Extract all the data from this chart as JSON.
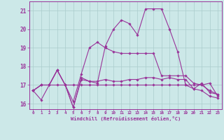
{
  "xlabel": "Windchill (Refroidissement éolien,°C)",
  "xlim": [
    -0.5,
    23.5
  ],
  "ylim": [
    15.7,
    21.5
  ],
  "yticks": [
    16,
    17,
    18,
    19,
    20,
    21
  ],
  "xticks": [
    0,
    1,
    2,
    3,
    4,
    5,
    6,
    7,
    8,
    9,
    10,
    11,
    12,
    13,
    14,
    15,
    16,
    17,
    18,
    19,
    20,
    21,
    22,
    23
  ],
  "bg_color": "#cce8e8",
  "line_color": "#993399",
  "grid_color": "#aacccc",
  "series": [
    [
      16.7,
      16.2,
      17.0,
      17.8,
      17.0,
      15.8,
      17.3,
      17.2,
      17.1,
      19.1,
      20.0,
      20.5,
      20.3,
      19.7,
      21.1,
      21.1,
      21.1,
      20.0,
      18.8,
      17.0,
      17.0,
      17.0,
      17.1,
      16.4
    ],
    [
      16.7,
      17.0,
      17.0,
      17.0,
      17.0,
      17.0,
      17.0,
      17.0,
      17.0,
      17.0,
      17.0,
      17.0,
      17.0,
      17.0,
      17.0,
      17.0,
      17.0,
      17.0,
      17.0,
      17.0,
      16.8,
      16.7,
      16.4,
      16.3
    ],
    [
      16.7,
      17.0,
      17.0,
      17.8,
      17.0,
      16.1,
      17.6,
      19.0,
      19.3,
      19.0,
      18.8,
      18.7,
      18.7,
      18.7,
      18.7,
      18.7,
      17.5,
      17.5,
      17.5,
      17.5,
      17.1,
      17.0,
      16.7,
      16.5
    ],
    [
      16.7,
      17.0,
      17.0,
      17.8,
      17.0,
      15.8,
      17.4,
      17.2,
      17.2,
      17.3,
      17.2,
      17.2,
      17.3,
      17.3,
      17.4,
      17.4,
      17.3,
      17.4,
      17.3,
      17.3,
      16.8,
      17.1,
      16.6,
      16.5
    ]
  ]
}
